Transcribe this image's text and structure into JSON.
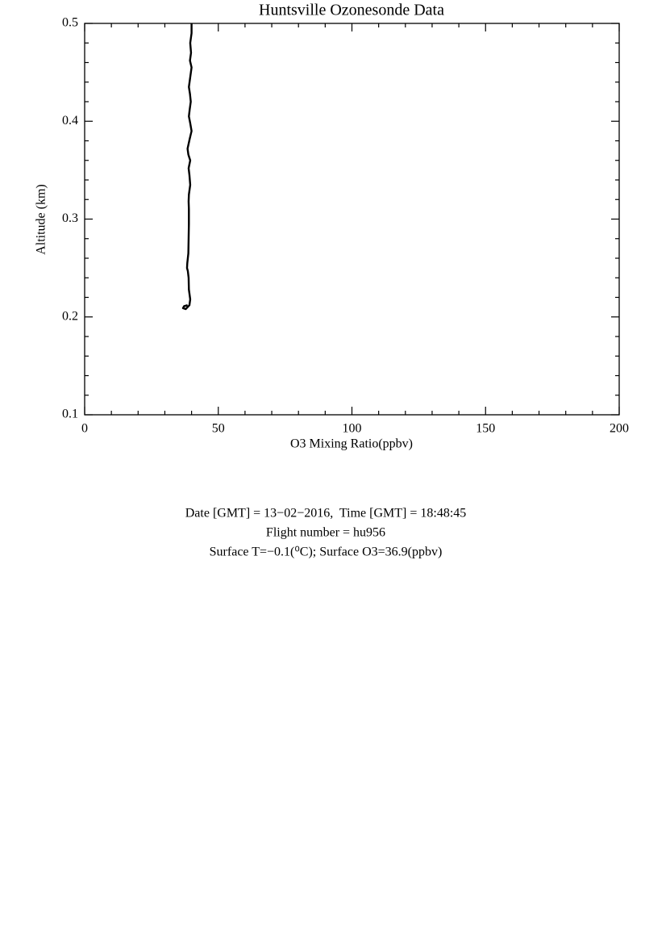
{
  "chart_data": {
    "type": "line",
    "title": "Huntsville Ozonesonde Data",
    "xlabel": "O3 Mixing Ratio(ppbv)",
    "ylabel": "Altitude (km)",
    "x": [
      38.5,
      37.2,
      36.8,
      37.8,
      39.2,
      39.5,
      39,
      38.9,
      38.6,
      38.3,
      38.4,
      38.8,
      38.9,
      39,
      39,
      38.9,
      39,
      39.5,
      39.2,
      38.9,
      39.5,
      38.8,
      38.5,
      39.3,
      40,
      39.5,
      39,
      39.3,
      39.7,
      39.4,
      39,
      39.5,
      40,
      39.4,
      39.8,
      39.5,
      40,
      40
    ],
    "series": [
      {
        "name": "O3",
        "color": "#000000",
        "values": [
          0.212,
          0.211,
          0.209,
          0.208,
          0.212,
          0.218,
          0.228,
          0.24,
          0.247,
          0.25,
          0.255,
          0.265,
          0.28,
          0.295,
          0.31,
          0.318,
          0.325,
          0.335,
          0.345,
          0.352,
          0.36,
          0.366,
          0.372,
          0.382,
          0.39,
          0.398,
          0.405,
          0.412,
          0.42,
          0.428,
          0.435,
          0.445,
          0.455,
          0.462,
          0.47,
          0.48,
          0.49,
          0.5
        ]
      }
    ],
    "xlim": [
      0,
      200
    ],
    "xticks": [
      0,
      50,
      100,
      150,
      200
    ],
    "ylim": [
      0.1,
      0.5
    ],
    "yticks": [
      0.1,
      0.2,
      0.3,
      0.4,
      0.5
    ],
    "minor_ticks": 5,
    "footer": [
      "Date [GMT] = 13−02−2016,  Time [GMT] = 18:48:45",
      "Flight number = hu956",
      "Surface T=−0.1(⁰C); Surface O3=36.9(ppbv)"
    ]
  }
}
